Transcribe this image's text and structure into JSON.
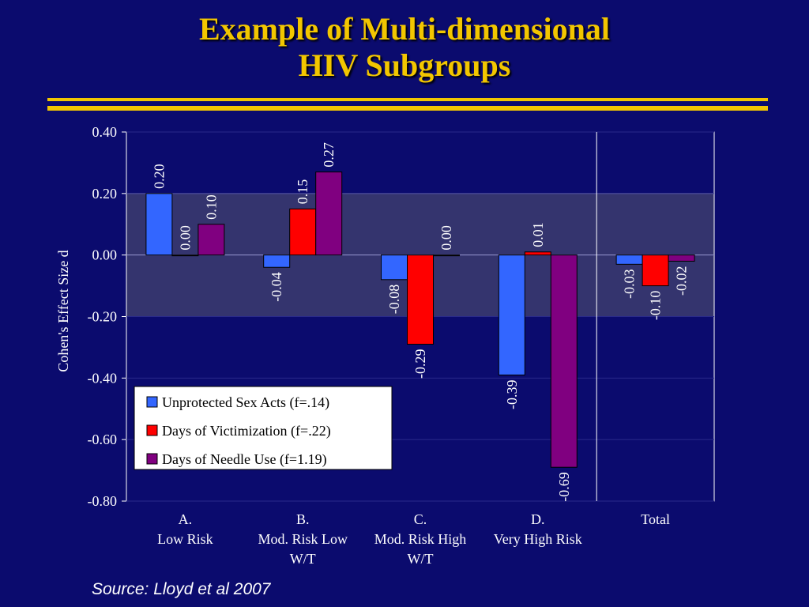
{
  "title_lines": [
    "Example of Multi-dimensional",
    "HIV Subgroups"
  ],
  "source": "Source: Lloyd et al 2007",
  "colors": {
    "background": "#0b0b6e",
    "title": "#f2c600",
    "band": "#34346e",
    "series": [
      "#3366ff",
      "#ff0000",
      "#800080"
    ]
  },
  "chart_data": {
    "type": "bar",
    "ylabel": "Cohen's Effect Size d",
    "ylim": [
      -0.8,
      0.4
    ],
    "yticks": [
      "0.40",
      "0.20",
      "0.00",
      "-0.20",
      "-0.40",
      "-0.60",
      "-0.80"
    ],
    "band_range": [
      -0.2,
      0.2
    ],
    "categories": [
      [
        "A.",
        "Low Risk"
      ],
      [
        "B.",
        "Mod. Risk Low",
        "W/T"
      ],
      [
        "C.",
        "Mod. Risk High",
        "W/T"
      ],
      [
        "D.",
        "Very High Risk"
      ],
      [
        "Total"
      ]
    ],
    "series": [
      {
        "name": "Unprotected Sex Acts (f=.14)",
        "values": [
          0.2,
          -0.04,
          -0.08,
          -0.39,
          -0.03
        ],
        "labels": [
          "0.20",
          "-0.04",
          "-0.08",
          "-0.39",
          "-0.03"
        ]
      },
      {
        "name": "Days of Victimization (f=.22)",
        "values": [
          0.0,
          0.15,
          -0.29,
          0.01,
          -0.1
        ],
        "labels": [
          "0.00",
          "0.15",
          "-0.29",
          "0.01",
          "-0.10"
        ]
      },
      {
        "name": "Days of Needle Use (f=1.19)",
        "values": [
          0.1,
          0.27,
          0.0,
          -0.69,
          -0.02
        ],
        "labels": [
          "0.10",
          "0.27",
          "0.00",
          "-0.69",
          "-0.02"
        ]
      }
    ],
    "legend_position": "lower-left",
    "separator_before_category": 4,
    "grid": true
  }
}
